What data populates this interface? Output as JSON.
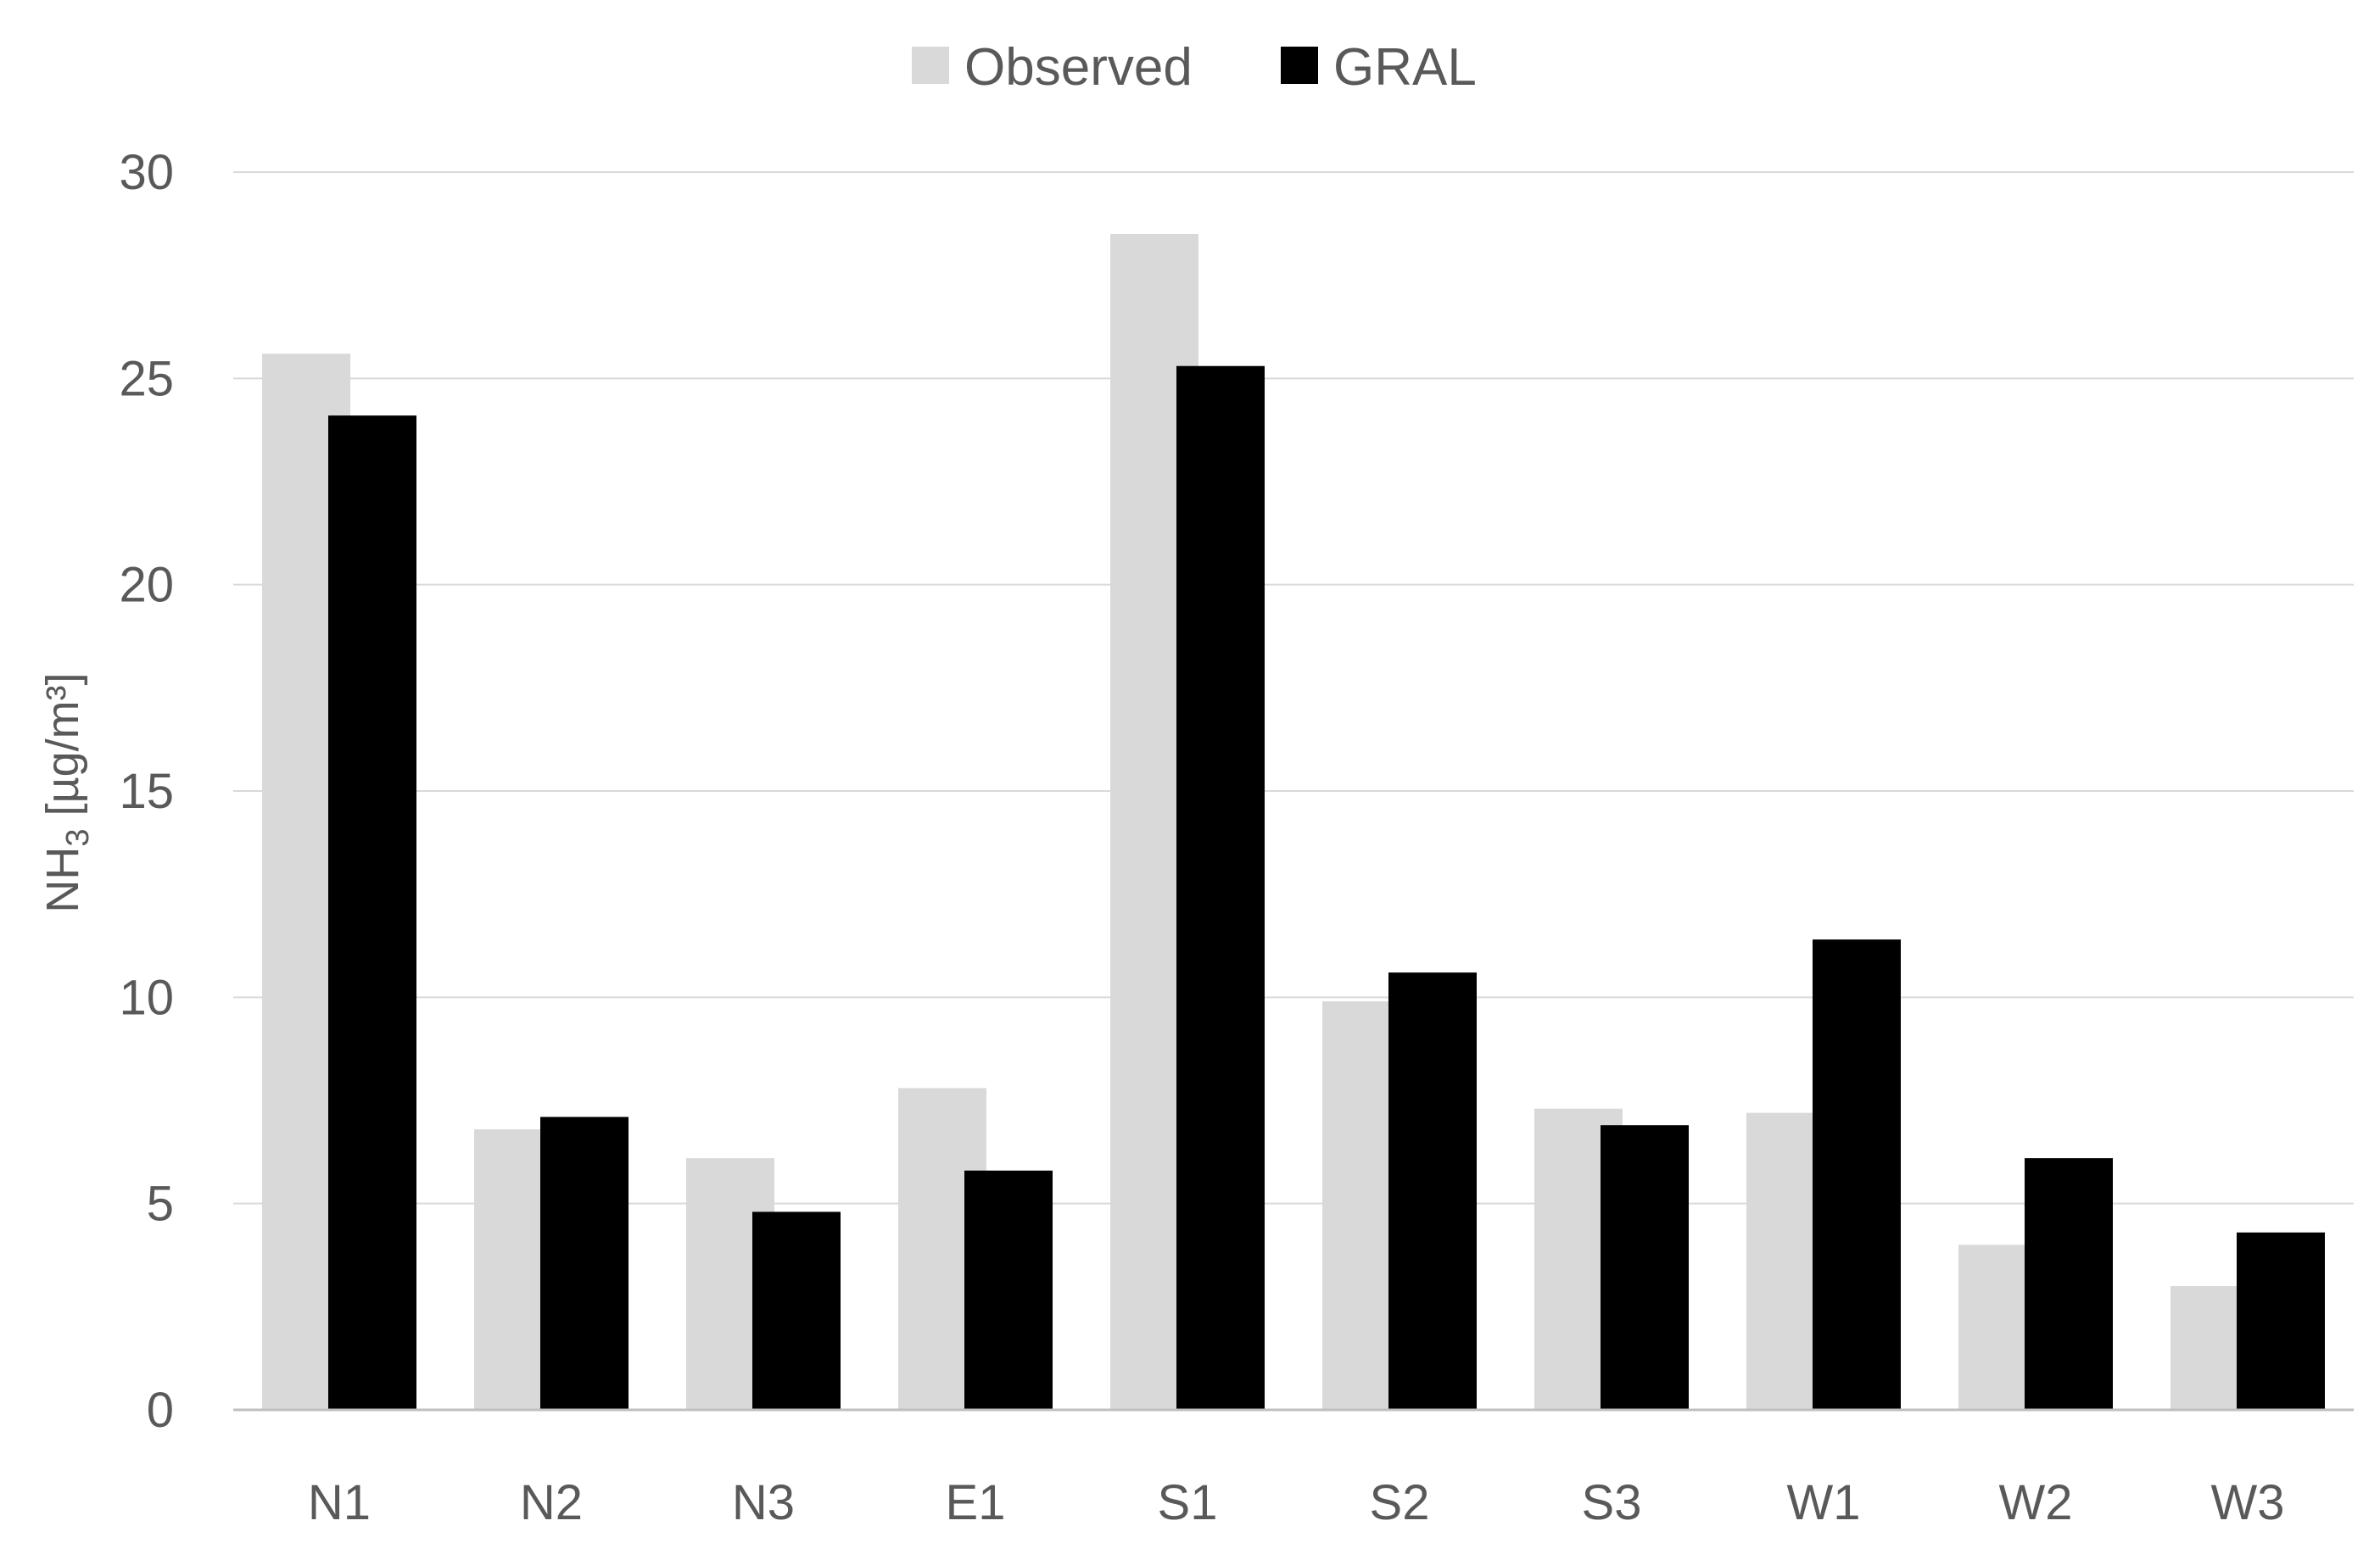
{
  "chart_data": {
    "type": "bar",
    "categories": [
      "N1",
      "N2",
      "N3",
      "E1",
      "S1",
      "S2",
      "S3",
      "W1",
      "W2",
      "W3"
    ],
    "series": [
      {
        "name": "Observed",
        "color": "#d9d9d9",
        "values": [
          25.6,
          6.8,
          6.1,
          7.8,
          28.5,
          9.9,
          7.3,
          7.2,
          4.0,
          3.0
        ]
      },
      {
        "name": "GRAL",
        "color": "#000000",
        "values": [
          24.1,
          7.1,
          4.8,
          5.8,
          25.3,
          10.6,
          6.9,
          11.4,
          6.1,
          4.3
        ]
      }
    ],
    "title": "",
    "xlabel": "",
    "ylabel": {
      "main": "NH",
      "sub": "3",
      "unit": " [µg/m³]"
    },
    "ylim": [
      0,
      30
    ],
    "yticks": [
      0,
      5,
      10,
      15,
      20,
      25,
      30
    ],
    "grid": true,
    "legend": "top-center"
  }
}
